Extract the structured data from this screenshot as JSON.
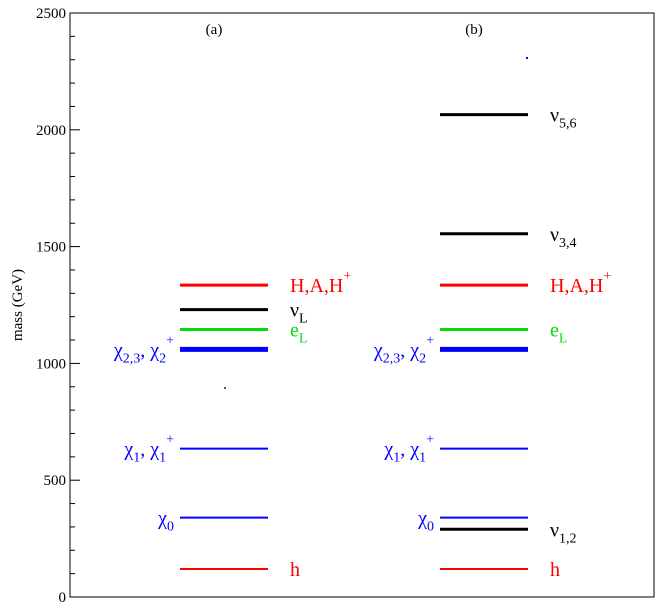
{
  "chart_data": {
    "type": "level-diagram",
    "ylabel": "mass (GeV)",
    "ylim": [
      0,
      2500
    ],
    "yticks": [
      "0",
      "500",
      "1000",
      "1500",
      "2000",
      "2500"
    ],
    "panels": [
      {
        "label": "(a)",
        "levels": [
          {
            "value": 120,
            "color": "#ff0000",
            "weight": "thin",
            "label": {
              "side": "right",
              "base": "h",
              "sub": "",
              "sup": ""
            }
          },
          {
            "value": 340,
            "color": "#0000ff",
            "weight": "thin",
            "label": {
              "side": "left",
              "base": "χ",
              "sub": "0",
              "sup": ""
            }
          },
          {
            "value": 635,
            "color": "#0000ff",
            "weight": "thin",
            "label": {
              "side": "left",
              "base": "χ",
              "sub": "1",
              "sup": "",
              "base2": ", χ",
              "sub2": "1",
              "sup2": "+"
            }
          },
          {
            "value": 1060,
            "color": "#0000ff",
            "weight": "thick",
            "label": {
              "side": "left",
              "base": "χ",
              "sub": "2,3",
              "sup": "",
              "base2": ", χ",
              "sub2": "2",
              "sup2": "+"
            }
          },
          {
            "value": 1145,
            "color": "#00dd00",
            "weight": "medium",
            "label": {
              "side": "right",
              "base": "e",
              "sub": "L",
              "sup": ""
            }
          },
          {
            "value": 1230,
            "color": "#000000",
            "weight": "medium",
            "label": {
              "side": "right",
              "base": "ν",
              "sub": "L",
              "sup": ""
            }
          },
          {
            "value": 1335,
            "color": "#ff0000",
            "weight": "medium",
            "label": {
              "side": "right",
              "base": "H,A,H",
              "sub": "",
              "sup": "+"
            }
          }
        ]
      },
      {
        "label": "(b)",
        "levels": [
          {
            "value": 120,
            "color": "#ff0000",
            "weight": "thin",
            "label": {
              "side": "right",
              "base": "h",
              "sub": "",
              "sup": ""
            }
          },
          {
            "value": 290,
            "color": "#000000",
            "weight": "medium",
            "label": {
              "side": "right",
              "base": "ν",
              "sub": "1,2",
              "sup": ""
            }
          },
          {
            "value": 340,
            "color": "#0000ff",
            "weight": "thin",
            "label": {
              "side": "left",
              "base": "χ",
              "sub": "0",
              "sup": ""
            }
          },
          {
            "value": 635,
            "color": "#0000ff",
            "weight": "thin",
            "label": {
              "side": "left",
              "base": "χ",
              "sub": "1",
              "sup": "",
              "base2": ", χ",
              "sub2": "1",
              "sup2": "+"
            }
          },
          {
            "value": 1060,
            "color": "#0000ff",
            "weight": "thick",
            "label": {
              "side": "left",
              "base": "χ",
              "sub": "2,3",
              "sup": "",
              "base2": ", χ",
              "sub2": "2",
              "sup2": "+"
            }
          },
          {
            "value": 1145,
            "color": "#00dd00",
            "weight": "medium",
            "label": {
              "side": "right",
              "base": "e",
              "sub": "L",
              "sup": ""
            }
          },
          {
            "value": 1335,
            "color": "#ff0000",
            "weight": "medium",
            "label": {
              "side": "right",
              "base": "H,A,H",
              "sub": "",
              "sup": "+"
            }
          },
          {
            "value": 1555,
            "color": "#000000",
            "weight": "medium",
            "label": {
              "side": "right",
              "base": "ν",
              "sub": "3,4",
              "sup": ""
            }
          },
          {
            "value": 2065,
            "color": "#000000",
            "weight": "medium",
            "label": {
              "side": "right",
              "base": "ν",
              "sub": "5,6",
              "sup": ""
            }
          }
        ]
      }
    ]
  }
}
